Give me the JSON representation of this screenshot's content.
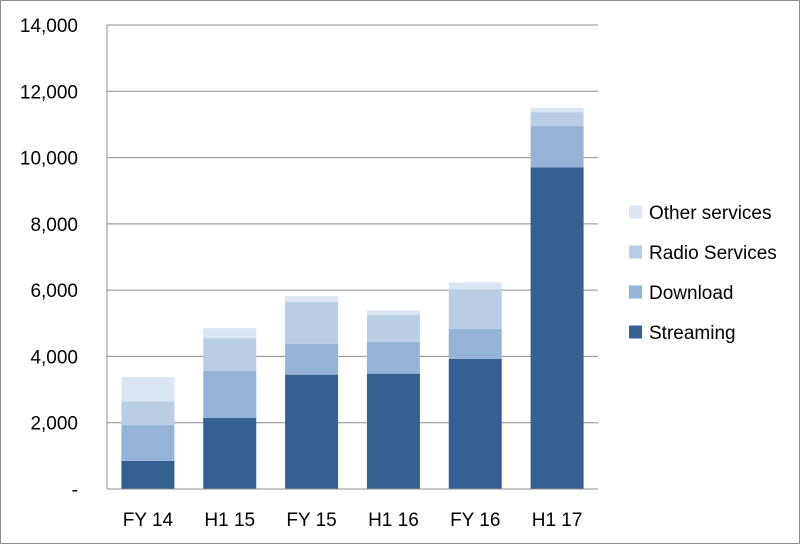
{
  "chart_data": {
    "type": "bar",
    "stacked": true,
    "categories": [
      "FY 14",
      "H1 15",
      "FY 15",
      "H1 16",
      "FY 16",
      "H1 17"
    ],
    "series": [
      {
        "name": "Streaming",
        "color": "#376092",
        "values": [
          850,
          2150,
          3450,
          3480,
          3930,
          9700
        ]
      },
      {
        "name": "Download",
        "color": "#95B3D7",
        "values": [
          1080,
          1420,
          930,
          960,
          900,
          1250
        ]
      },
      {
        "name": "Radio Services",
        "color": "#B9CDE5",
        "values": [
          720,
          980,
          1260,
          810,
          1200,
          420
        ]
      },
      {
        "name": "Other services",
        "color": "#DCE6F2",
        "values": [
          730,
          300,
          180,
          140,
          200,
          130
        ]
      }
    ],
    "ylim": [
      0,
      14000
    ],
    "yticks": [
      0,
      2000,
      4000,
      6000,
      8000,
      10000,
      12000,
      14000
    ],
    "ytick_labels": [
      "-",
      "2,000",
      "4,000",
      "6,000",
      "8,000",
      "10,000",
      "12,000",
      "14,000"
    ],
    "grid": true,
    "legend_position": "right",
    "legend_order": [
      "Other services",
      "Radio Services",
      "Download",
      "Streaming"
    ]
  }
}
